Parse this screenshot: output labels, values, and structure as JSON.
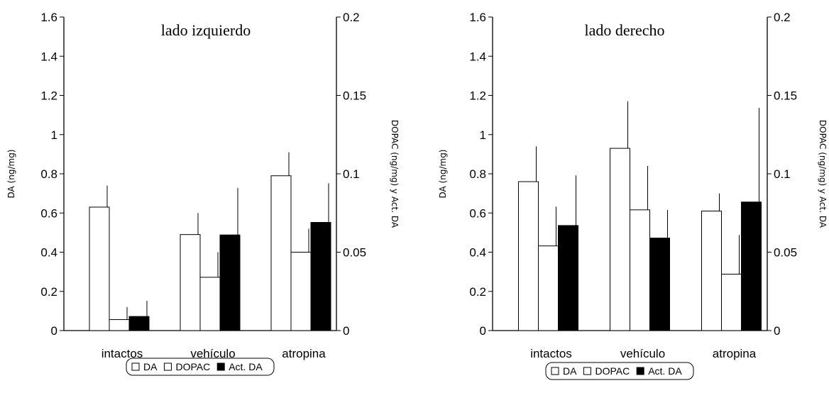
{
  "chart_data": [
    {
      "type": "bar",
      "title": "lado izquierdo",
      "ylabel": "DA (ng/mg)",
      "y2label": "DOPAC (ng/mg) y Act. DA",
      "categories": [
        "intactos",
        "vehículo",
        "atropina"
      ],
      "ylim": [
        0,
        1.6
      ],
      "y2lim": [
        0,
        0.2
      ],
      "yticks": [
        "0",
        "0.2",
        "0.4",
        "0.6",
        "0.8",
        "1",
        "1.2",
        "1.4",
        "1.6"
      ],
      "y2ticks": [
        "0",
        "0.05",
        "0.1",
        "0.15",
        "0.2"
      ],
      "series": [
        {
          "name": "DA",
          "axis": "left",
          "color": "#ffffff",
          "values": [
            0.63,
            0.49,
            0.79
          ],
          "errors": [
            0.11,
            0.11,
            0.12
          ]
        },
        {
          "name": "DOPAC",
          "axis": "right",
          "color": "#ffffff",
          "values": [
            0.007,
            0.034,
            0.05
          ],
          "errors": [
            0.008,
            0.016,
            0.015
          ]
        },
        {
          "name": "Act. DA",
          "axis": "right",
          "color": "#000000",
          "values": [
            0.009,
            0.061,
            0.069
          ],
          "errors": [
            0.01,
            0.03,
            0.025
          ]
        }
      ]
    },
    {
      "type": "bar",
      "title": "lado derecho",
      "ylabel": "DA (ng/mg)",
      "y2label": "DOPAC (ng/mg) y Act. DA",
      "categories": [
        "intactos",
        "vehículo",
        "atropina"
      ],
      "ylim": [
        0,
        1.6
      ],
      "y2lim": [
        0,
        0.2
      ],
      "yticks": [
        "0",
        "0.2",
        "0.4",
        "0.6",
        "0.8",
        "1",
        "1.2",
        "1.4",
        "1.6"
      ],
      "y2ticks": [
        "0",
        "0.05",
        "0.1",
        "0.15",
        "0.2"
      ],
      "series": [
        {
          "name": "DA",
          "axis": "left",
          "color": "#ffffff",
          "values": [
            0.76,
            0.93,
            0.61
          ],
          "errors": [
            0.18,
            0.24,
            0.09
          ]
        },
        {
          "name": "DOPAC",
          "axis": "right",
          "color": "#ffffff",
          "values": [
            0.054,
            0.077,
            0.036
          ],
          "errors": [
            0.025,
            0.028,
            0.025
          ]
        },
        {
          "name": "Act. DA",
          "axis": "right",
          "color": "#000000",
          "values": [
            0.067,
            0.059,
            0.082
          ],
          "errors": [
            0.032,
            0.018,
            0.06
          ]
        }
      ]
    }
  ],
  "legend": {
    "items": [
      {
        "label": "DA",
        "swatch": "#ffffff"
      },
      {
        "label": "DOPAC",
        "swatch": "#ffffff"
      },
      {
        "label": "Act. DA",
        "swatch": "#000000"
      }
    ]
  }
}
